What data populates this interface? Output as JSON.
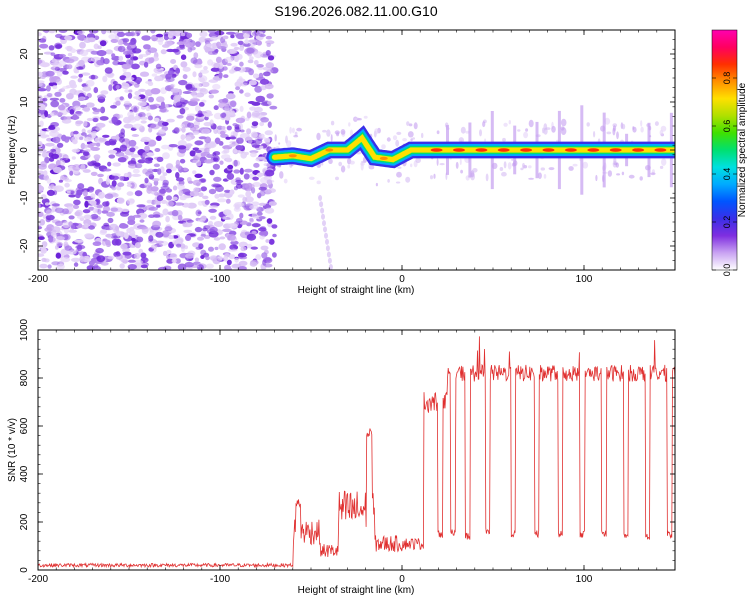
{
  "figure_title": "S196.2026.082.11.00.G10",
  "chart_data": [
    {
      "type": "heatmap",
      "name": "spectrogram",
      "xlabel": "Height of straight line (km)",
      "ylabel": "Frequency (Hz)",
      "xlim": [
        -200,
        150
      ],
      "ylim": [
        -25,
        25
      ],
      "xticks": [
        -200,
        -100,
        0,
        100
      ],
      "yticks": [
        -20,
        -10,
        0,
        10,
        20
      ],
      "noise_region_x": [
        -200,
        -70
      ],
      "signal_region_x": [
        -70,
        150
      ],
      "signal_track": [
        {
          "x": -70,
          "f": -1.5
        },
        {
          "x": -60,
          "f": -1.2
        },
        {
          "x": -50,
          "f": -1.8
        },
        {
          "x": -40,
          "f": 0
        },
        {
          "x": -30,
          "f": 0
        },
        {
          "x": -22,
          "f": 2.5
        },
        {
          "x": -15,
          "f": -1.5
        },
        {
          "x": -5,
          "f": -2
        },
        {
          "x": 0,
          "f": -1
        },
        {
          "x": 5,
          "f": 0
        },
        {
          "x": 20,
          "f": 0
        },
        {
          "x": 150,
          "f": 0
        }
      ],
      "faint_tail": [
        {
          "x": -45,
          "f": -10
        },
        {
          "x": -38,
          "f": -27
        }
      ],
      "colorbar": {
        "label": "Normalized spectral amplitude",
        "ticks": [
          "0.0",
          "0.2",
          "0.4",
          "0.6",
          "0.8"
        ],
        "range": [
          0,
          1
        ],
        "colors": [
          "#ffffff",
          "#c9a3f2",
          "#7f2fe0",
          "#3a2fe8",
          "#0055ff",
          "#00aaff",
          "#00e0e0",
          "#00e070",
          "#40e000",
          "#b0e000",
          "#ffe000",
          "#ff9000",
          "#ff3000",
          "#ff0060",
          "#ff00b0"
        ]
      }
    },
    {
      "type": "line",
      "name": "snr",
      "xlabel": "Height of straight line (km)",
      "ylabel": "SNR (10 * v/v)",
      "xlim": [
        -200,
        150
      ],
      "ylim": [
        0,
        1000
      ],
      "xticks": [
        -200,
        -100,
        0,
        100
      ],
      "yticks": [
        0,
        200,
        400,
        600,
        800,
        1000
      ],
      "color": "#e03030",
      "segments": [
        {
          "from": -200,
          "to": -60,
          "level": 20,
          "noise": 15
        },
        {
          "from": -60,
          "to": -45,
          "level": 160,
          "noise": 110,
          "peak": {
            "x": -57,
            "y": 300
          }
        },
        {
          "from": -45,
          "to": -35,
          "level": 80,
          "noise": 60
        },
        {
          "from": -35,
          "to": -15,
          "level": 250,
          "noise": 170,
          "peak": {
            "x": -18,
            "y": 590
          }
        },
        {
          "from": -15,
          "to": 0,
          "level": 110,
          "noise": 70
        },
        {
          "from": 0,
          "to": 12,
          "level": 110,
          "noise": 50
        },
        {
          "from": 12,
          "to": 25,
          "level": 700,
          "noise": 90
        },
        {
          "from": 25,
          "to": 150,
          "level": 820,
          "noise": 70
        }
      ],
      "dropouts": [
        {
          "x": 21,
          "y": 150
        },
        {
          "x": 28,
          "y": 160
        },
        {
          "x": 36,
          "y": 140
        },
        {
          "x": 47,
          "y": 160
        },
        {
          "x": 61,
          "y": 150
        },
        {
          "x": 74,
          "y": 150
        },
        {
          "x": 87,
          "y": 150
        },
        {
          "x": 99,
          "y": 150
        },
        {
          "x": 111,
          "y": 150
        },
        {
          "x": 123,
          "y": 140
        },
        {
          "x": 135,
          "y": 140
        },
        {
          "x": 147,
          "y": 150
        }
      ]
    }
  ]
}
